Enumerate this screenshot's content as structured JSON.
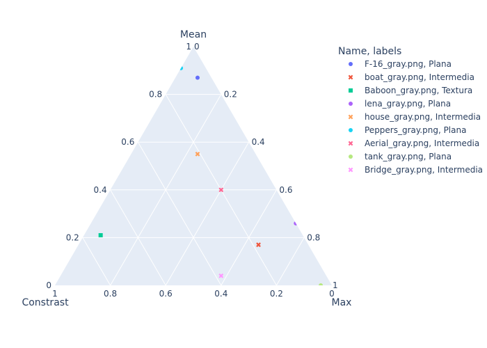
{
  "chart_data": {
    "type": "scatter",
    "subtype": "ternary",
    "axes": {
      "a": {
        "title": "Mean",
        "ticks": [
          0.2,
          0.4,
          0.6,
          0.8,
          1
        ],
        "tick_labels": [
          "0.2",
          "0.4",
          "0.6",
          "0.8",
          "1"
        ]
      },
      "b": {
        "title": "Constrast",
        "ticks": [
          0.2,
          0.4,
          0.6,
          0.8,
          1
        ],
        "tick_labels": [
          "0.2",
          "0.4",
          "0.6",
          "0.8",
          "1"
        ]
      },
      "c": {
        "title": "Max",
        "ticks": [
          0.2,
          0.4,
          0.6,
          0.8,
          1
        ],
        "tick_labels": [
          "0.2",
          "0.4",
          "0.6",
          "0.8",
          "1"
        ]
      },
      "zero_labels": {
        "top": "0",
        "bottom_left": "0",
        "bottom_right": "0"
      }
    },
    "grid": true,
    "plot_background": "#e5ecf6",
    "legend": {
      "title": "Name, labels",
      "placement": "right"
    },
    "series": [
      {
        "name": "F-16_gray.png, Plana",
        "symbol": "circle",
        "color": "#636efa",
        "a": 0.87,
        "b": 0.05,
        "c": 0.08
      },
      {
        "name": "boat_gray.png, Intermedia",
        "symbol": "x",
        "color": "#ef553b",
        "a": 0.17,
        "b": 0.18,
        "c": 0.65
      },
      {
        "name": "Baboon_gray.png, Textura",
        "symbol": "square",
        "color": "#00cc96",
        "a": 0.21,
        "b": 0.73,
        "c": 0.06
      },
      {
        "name": "lena_gray.png, Plana",
        "symbol": "circle",
        "color": "#ab63fa",
        "a": 0.26,
        "b": 0.0,
        "c": 0.74
      },
      {
        "name": "house_gray.png, Intermedia",
        "symbol": "x",
        "color": "#ffa15a",
        "a": 0.55,
        "b": 0.21,
        "c": 0.24
      },
      {
        "name": "Peppers_gray.png, Plana",
        "symbol": "circle",
        "color": "#19d3f3",
        "a": 0.91,
        "b": 0.09,
        "c": 0.0
      },
      {
        "name": "Aerial_gray.png, Intermedia",
        "symbol": "x",
        "color": "#ff6692",
        "a": 0.4,
        "b": 0.2,
        "c": 0.4
      },
      {
        "name": "tank_gray.png, Plana",
        "symbol": "circle",
        "color": "#b6e880",
        "a": 0.0,
        "b": 0.04,
        "c": 0.96
      },
      {
        "name": "Bridge_gray.png, Intermedia",
        "symbol": "x",
        "color": "#ff97ff",
        "a": 0.04,
        "b": 0.38,
        "c": 0.58
      }
    ]
  }
}
